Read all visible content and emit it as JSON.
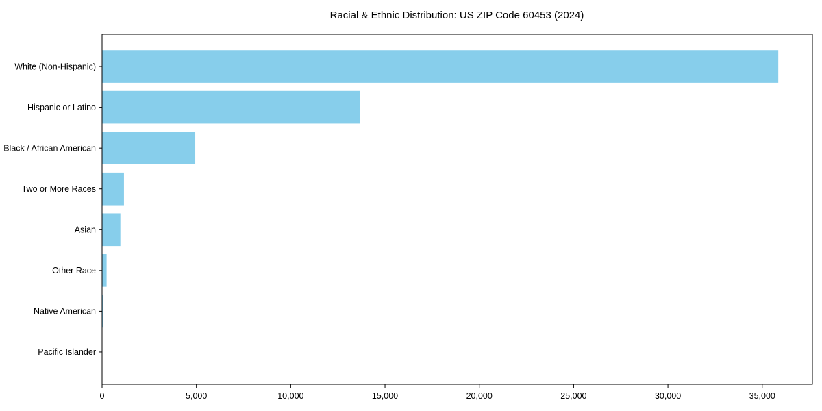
{
  "chart_data": {
    "type": "bar",
    "orientation": "horizontal",
    "title": "Racial & Ethnic Distribution: US ZIP Code 60453 (2024)",
    "categories": [
      "White (Non-Hispanic)",
      "Hispanic or Latino",
      "Black / African American",
      "Two or More Races",
      "Asian",
      "Other Race",
      "Native American",
      "Pacific Islander"
    ],
    "values": [
      35850,
      13690,
      4940,
      1160,
      970,
      240,
      40,
      10
    ],
    "bar_color": "#87CEEB",
    "background_color": "#ffffff",
    "spine_color": "#000000",
    "xlabel": "",
    "ylabel": "",
    "xlim": [
      0,
      37660
    ],
    "xticks": [
      0,
      5000,
      10000,
      15000,
      20000,
      25000,
      30000,
      35000
    ],
    "xtick_labels": [
      "0",
      "5,000",
      "10,000",
      "15,000",
      "20,000",
      "25,000",
      "30,000",
      "35,000"
    ],
    "grid": false,
    "legend": null,
    "bar_height_fraction": 0.8
  }
}
